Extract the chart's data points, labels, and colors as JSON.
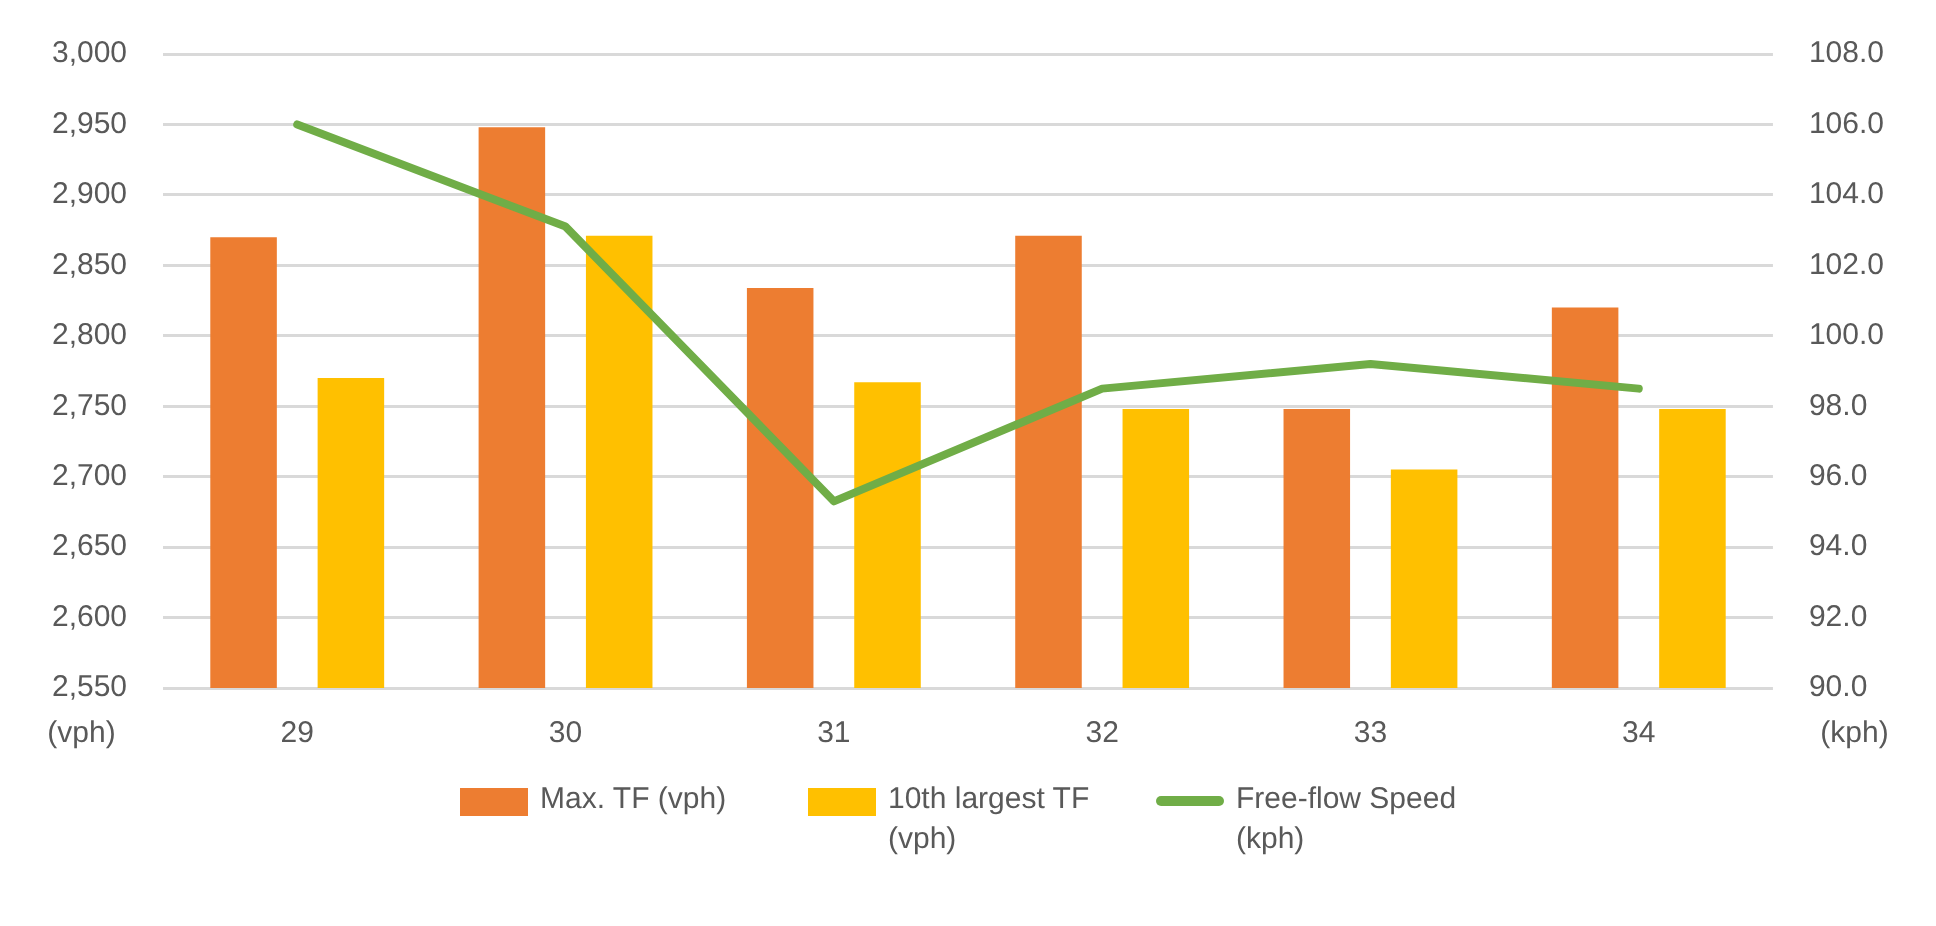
{
  "chart_data": {
    "type": "bar",
    "categories": [
      "29",
      "30",
      "31",
      "32",
      "33",
      "34"
    ],
    "series": [
      {
        "name": "Max. TF (vph)",
        "color": "#ed7d31",
        "values": [
          2870,
          2948,
          2834,
          2871,
          2748,
          2820
        ]
      },
      {
        "name": "10th largest TF (vph)",
        "color": "#ffc000",
        "values": [
          2770,
          2871,
          2767,
          2748,
          2705,
          2748
        ]
      },
      {
        "name": "Free-flow Speed (kph)",
        "type": "line",
        "axis": "y2",
        "color": "#70ad47",
        "values": [
          106.0,
          103.1,
          95.3,
          98.5,
          99.2,
          98.5
        ]
      }
    ],
    "ylabel": "(vph)",
    "y2label": "(kph)",
    "ylim": [
      2550,
      3000
    ],
    "yticks": [
      {
        "value": 2550,
        "label": "2,550"
      },
      {
        "value": 2600,
        "label": "2,600"
      },
      {
        "value": 2650,
        "label": "2,650"
      },
      {
        "value": 2700,
        "label": "2,700"
      },
      {
        "value": 2750,
        "label": "2,750"
      },
      {
        "value": 2800,
        "label": "2,800"
      },
      {
        "value": 2850,
        "label": "2,850"
      },
      {
        "value": 2900,
        "label": "2,900"
      },
      {
        "value": 2950,
        "label": "2,950"
      },
      {
        "value": 3000,
        "label": "3,000"
      }
    ],
    "y2lim": [
      90,
      108
    ],
    "y2ticks": [
      {
        "value": 90,
        "label": "90.0"
      },
      {
        "value": 92,
        "label": "92.0"
      },
      {
        "value": 94,
        "label": "94.0"
      },
      {
        "value": 96,
        "label": "96.0"
      },
      {
        "value": 98,
        "label": "98.0"
      },
      {
        "value": 100,
        "label": "100.0"
      },
      {
        "value": 102,
        "label": "102.0"
      },
      {
        "value": 104,
        "label": "104.0"
      },
      {
        "value": 106,
        "label": "106.0"
      },
      {
        "value": 108,
        "label": "108.0"
      }
    ],
    "grid": "y",
    "legend": "bottom",
    "marker": "none"
  }
}
